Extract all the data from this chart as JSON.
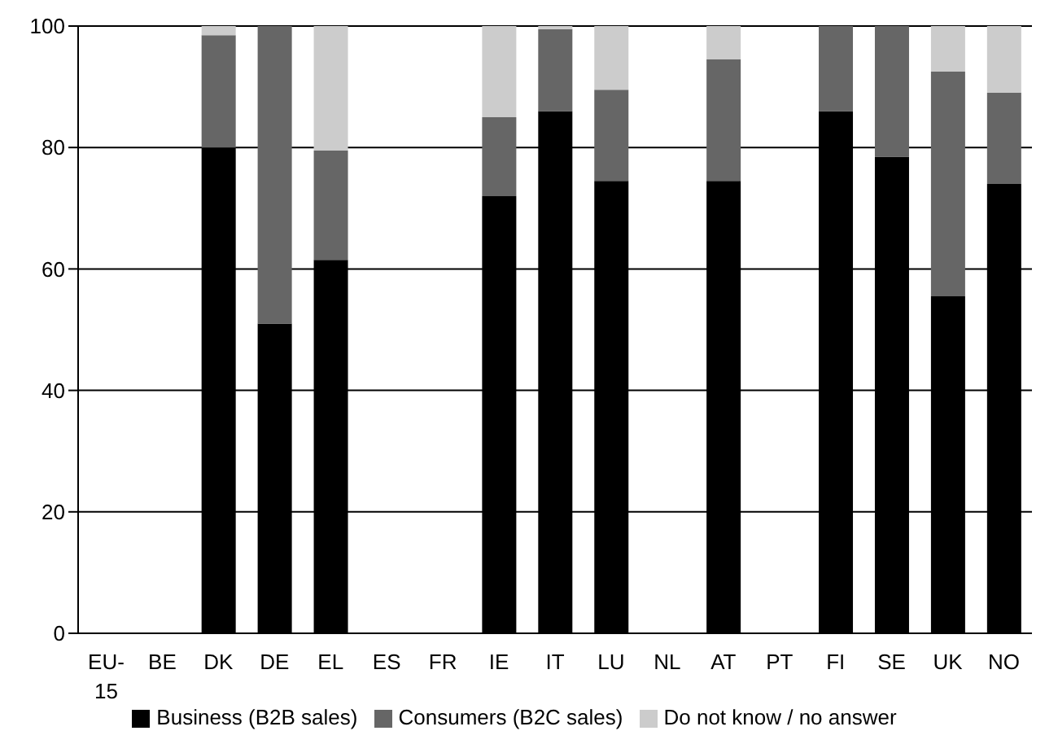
{
  "chart_data": {
    "type": "bar",
    "stacked": true,
    "categories": [
      "EU-15",
      "BE",
      "DK",
      "DE",
      "EL",
      "ES",
      "FR",
      "IE",
      "IT",
      "LU",
      "NL",
      "AT",
      "PT",
      "FI",
      "SE",
      "UK",
      "NO"
    ],
    "series": [
      {
        "name": "Business (B2B sales)",
        "color": "#000000",
        "values": [
          null,
          null,
          80,
          51,
          61.5,
          null,
          null,
          72,
          86,
          74.5,
          null,
          74.5,
          null,
          86,
          78.5,
          55.5,
          74
        ]
      },
      {
        "name": "Consumers (B2C sales)",
        "color": "#666666",
        "values": [
          null,
          null,
          18.5,
          49,
          18,
          null,
          null,
          13,
          13.5,
          15,
          null,
          20,
          null,
          14,
          21.5,
          37,
          15
        ]
      },
      {
        "name": "Do not know / no answer",
        "color": "#cccccc",
        "values": [
          null,
          null,
          1.5,
          0,
          20.5,
          null,
          null,
          15,
          0.5,
          10.5,
          null,
          5.5,
          null,
          0,
          0,
          7.5,
          11
        ]
      }
    ],
    "ylim": [
      0,
      100
    ],
    "yticks": [
      0,
      20,
      40,
      60,
      80,
      100
    ],
    "grid": "y",
    "legend": "bottom"
  }
}
